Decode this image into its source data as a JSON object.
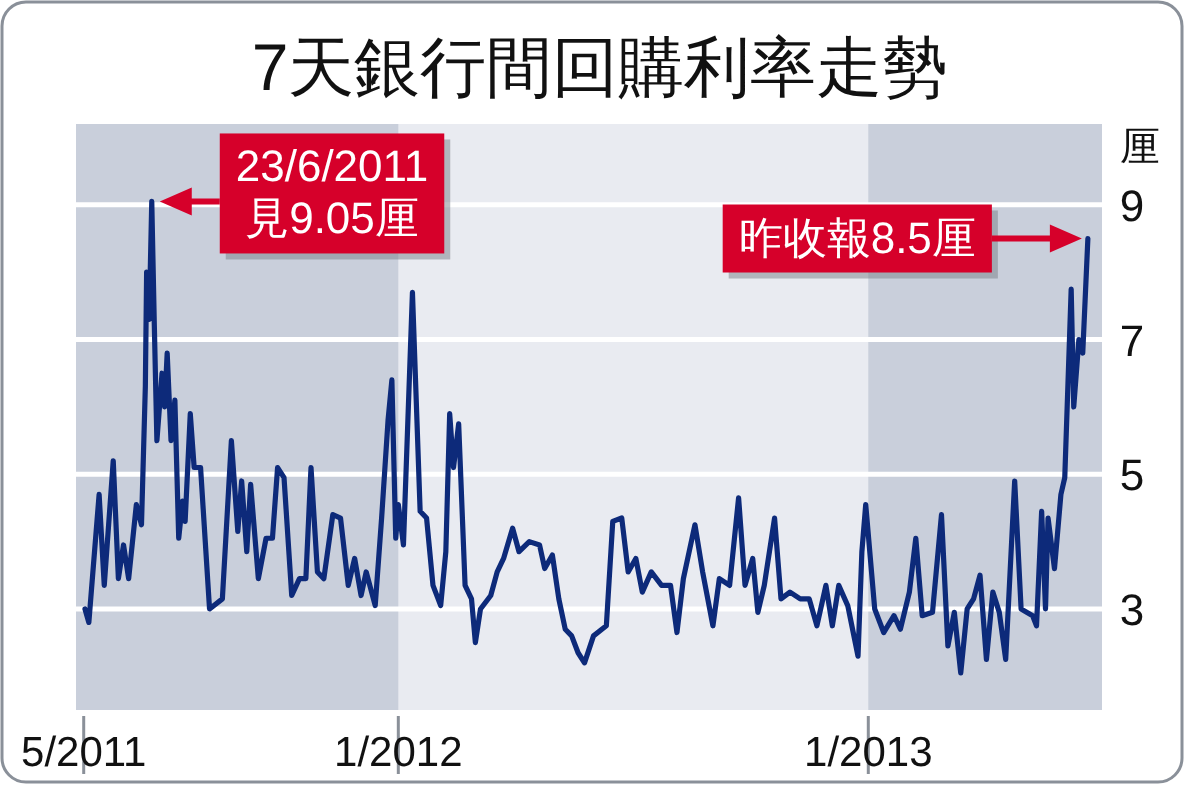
{
  "chart_data": {
    "type": "line",
    "title": "7天銀行間回購利率走勢",
    "ylabel": "厘",
    "x": [
      "2011-05-02",
      "2011-05-05",
      "2011-05-13",
      "2011-05-17",
      "2011-05-24",
      "2011-05-28",
      "2011-06-01",
      "2011-06-05",
      "2011-06-11",
      "2011-06-15",
      "2011-06-18",
      "2011-06-19",
      "2011-06-21",
      "2011-06-23",
      "2011-06-25",
      "2011-06-27",
      "2011-07-01",
      "2011-07-03",
      "2011-07-05",
      "2011-07-08",
      "2011-07-11",
      "2011-07-14",
      "2011-07-17",
      "2011-07-19",
      "2011-07-23",
      "2011-07-26",
      "2011-07-31",
      "2011-08-07",
      "2011-08-17",
      "2011-08-24",
      "2011-08-29",
      "2011-09-01",
      "2011-09-05",
      "2011-09-08",
      "2011-09-14",
      "2011-09-20",
      "2011-09-25",
      "2011-09-29",
      "2011-10-04",
      "2011-10-10",
      "2011-10-16",
      "2011-10-21",
      "2011-10-25",
      "2011-10-30",
      "2011-11-04",
      "2011-11-11",
      "2011-11-17",
      "2011-11-23",
      "2011-11-28",
      "2011-12-03",
      "2011-12-07",
      "2011-12-14",
      "2011-12-19",
      "2011-12-24",
      "2011-12-27",
      "2011-12-30",
      "2012-01-01",
      "2012-01-05",
      "2012-01-12",
      "2012-01-18",
      "2012-01-23",
      "2012-01-28",
      "2012-02-03",
      "2012-02-07",
      "2012-02-10",
      "2012-02-13",
      "2012-02-17",
      "2012-02-22",
      "2012-02-27",
      "2012-03-01",
      "2012-03-05",
      "2012-03-13",
      "2012-03-18",
      "2012-03-23",
      "2012-03-30",
      "2012-04-04",
      "2012-04-12",
      "2012-04-20",
      "2012-04-24",
      "2012-04-30",
      "2012-05-05",
      "2012-05-10",
      "2012-05-15",
      "2012-05-20",
      "2012-05-25",
      "2012-06-01",
      "2012-06-11",
      "2012-06-16",
      "2012-06-23",
      "2012-06-28",
      "2012-07-04",
      "2012-07-09",
      "2012-07-16",
      "2012-07-24",
      "2012-07-31",
      "2012-08-05",
      "2012-08-10",
      "2012-08-19",
      "2012-08-25",
      "2012-09-02",
      "2012-09-07",
      "2012-09-15",
      "2012-09-22",
      "2012-09-27",
      "2012-10-03",
      "2012-10-07",
      "2012-10-12",
      "2012-10-20",
      "2012-10-25",
      "2012-11-01",
      "2012-11-09",
      "2012-11-16",
      "2012-11-22",
      "2012-11-29",
      "2012-12-04",
      "2012-12-09",
      "2012-12-16",
      "2012-12-24",
      "2012-12-27",
      "2012-12-30",
      "2013-01-06",
      "2013-01-13",
      "2013-01-21",
      "2013-01-26",
      "2013-02-02",
      "2013-02-07",
      "2013-02-12",
      "2013-02-20",
      "2013-02-27",
      "2013-03-04",
      "2013-03-09",
      "2013-03-14",
      "2013-03-19",
      "2013-03-24",
      "2013-03-29",
      "2013-04-03",
      "2013-04-08",
      "2013-04-13",
      "2013-04-18",
      "2013-04-25",
      "2013-04-30",
      "2013-05-09",
      "2013-05-12",
      "2013-05-16",
      "2013-05-19",
      "2013-05-21",
      "2013-05-26",
      "2013-05-31",
      "2013-06-03",
      "2013-06-08",
      "2013-06-10",
      "2013-06-14",
      "2013-06-17",
      "2013-06-21"
    ],
    "series": [
      {
        "color": "#0d2a7a",
        "values": [
          3.0,
          2.8,
          4.7,
          3.35,
          5.2,
          3.45,
          3.95,
          3.45,
          4.55,
          4.25,
          6.3,
          8.0,
          7.3,
          9.05,
          7.2,
          5.5,
          6.5,
          6.0,
          6.8,
          5.5,
          6.1,
          4.05,
          4.6,
          4.3,
          5.9,
          5.1,
          5.1,
          3.0,
          3.15,
          5.5,
          4.15,
          4.9,
          3.85,
          4.85,
          3.45,
          4.05,
          4.05,
          5.1,
          4.95,
          3.2,
          3.45,
          3.45,
          5.1,
          3.55,
          3.45,
          4.4,
          4.35,
          3.35,
          3.75,
          3.2,
          3.55,
          3.05,
          4.35,
          5.8,
          6.4,
          4.05,
          4.55,
          3.95,
          7.7,
          4.45,
          4.35,
          3.35,
          3.05,
          3.85,
          5.9,
          5.1,
          5.75,
          3.35,
          3.15,
          2.5,
          3.0,
          3.2,
          3.55,
          3.75,
          4.2,
          3.85,
          4.0,
          3.95,
          3.6,
          3.8,
          3.15,
          2.7,
          2.6,
          2.35,
          2.2,
          2.6,
          2.75,
          4.3,
          4.35,
          3.55,
          3.75,
          3.25,
          3.55,
          3.35,
          3.35,
          2.65,
          3.45,
          4.25,
          3.55,
          2.75,
          3.45,
          3.35,
          4.65,
          3.35,
          3.75,
          2.95,
          3.35,
          4.35,
          3.15,
          3.25,
          3.15,
          3.15,
          2.75,
          3.35,
          2.75,
          3.35,
          3.05,
          2.3,
          3.85,
          4.55,
          3.0,
          2.65,
          2.9,
          2.7,
          3.25,
          4.05,
          2.9,
          2.95,
          4.4,
          2.45,
          2.95,
          2.05,
          3.0,
          3.15,
          3.5,
          2.25,
          3.25,
          2.95,
          2.25,
          4.9,
          3.0,
          2.9,
          2.75,
          4.45,
          3.0,
          4.35,
          3.6,
          4.7,
          4.95,
          7.75,
          6.0,
          7.0,
          6.8,
          8.5
        ]
      }
    ],
    "xlim": [
      "2011-04-25",
      "2013-07-02"
    ],
    "ylim": [
      1.5,
      10.2
    ],
    "xticks": [
      {
        "value": "2011-05-01",
        "label": "5/2011"
      },
      {
        "value": "2012-01-01",
        "label": "1/2012"
      },
      {
        "value": "2013-01-01",
        "label": "1/2013"
      }
    ],
    "yticks": [
      3,
      5,
      7,
      9
    ],
    "grid": "y",
    "bands": [
      {
        "axis": "x",
        "from": "2011-04-25",
        "to": "2012-01-01",
        "color": "#c9cfdb"
      },
      {
        "axis": "x",
        "from": "2013-01-01",
        "to": "2013-07-02",
        "color": "#c9cfdb"
      }
    ],
    "annotations": [
      {
        "text": "23/6/2011\n見9.05厘",
        "x": "2011-06-23",
        "y": 9.05
      },
      {
        "text": "昨收報8.5厘",
        "x": "2013-06-21",
        "y": 8.5
      }
    ]
  }
}
